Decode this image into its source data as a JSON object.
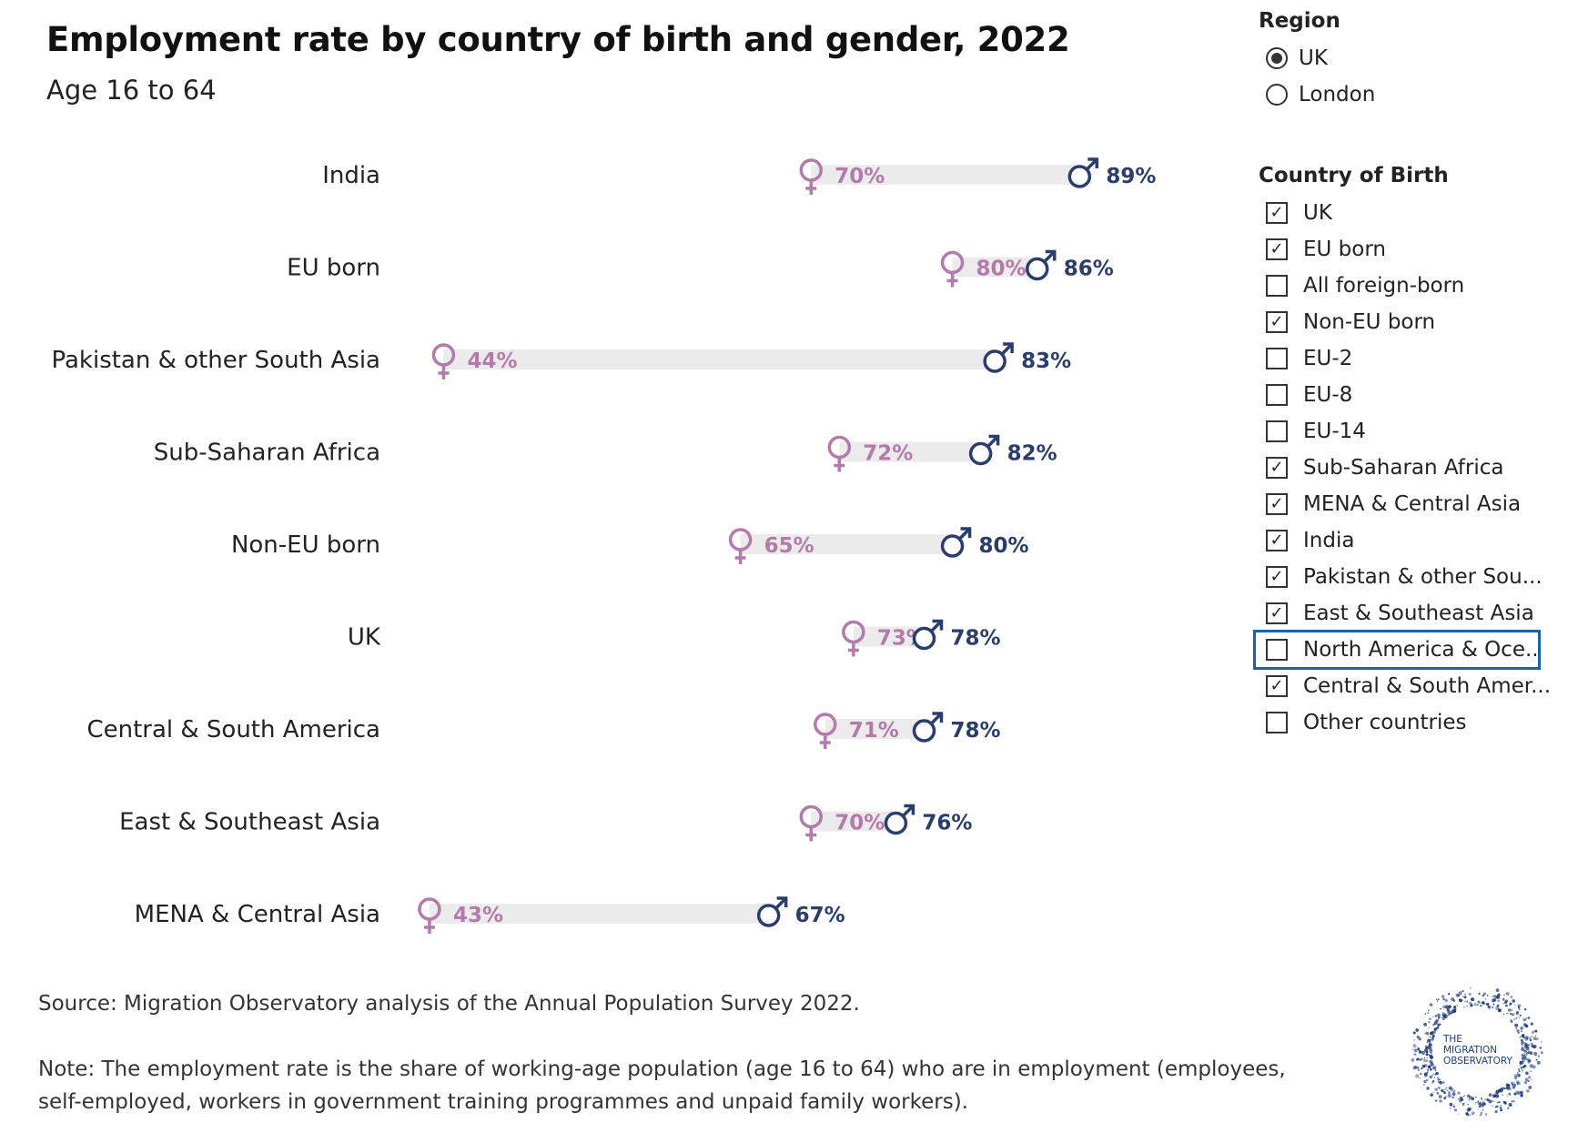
{
  "chart_data": {
    "type": "dumbbell",
    "title": "Employment rate by country of birth and gender, 2022",
    "subtitle": "Age 16 to 64",
    "categories": [
      "India",
      "EU born",
      "Pakistan & other South Asia",
      "Sub-Saharan Africa",
      "Non-EU born",
      "UK",
      "Central & South America",
      "East & Southeast Asia",
      "MENA & Central Asia"
    ],
    "series": [
      {
        "values": [
          70,
          80,
          44,
          72,
          65,
          73,
          71,
          70,
          43
        ]
      },
      {
        "values": [
          89,
          86,
          83,
          82,
          80,
          78,
          78,
          76,
          67
        ]
      }
    ],
    "value_labels_female": [
      "70%",
      "80%",
      "44%",
      "72%",
      "65%",
      "73%",
      "71%",
      "70%",
      "43%"
    ],
    "value_labels_male": [
      "89%",
      "86%",
      "83%",
      "82%",
      "80%",
      "78%",
      "78%",
      "76%",
      "67%"
    ],
    "colors": {
      "female": "#b37aab",
      "male": "#2a3d6b",
      "bar": "#ebebeb"
    }
  },
  "region": {
    "title": "Region",
    "options": [
      {
        "label": "UK",
        "selected": true
      },
      {
        "label": "London",
        "selected": false
      }
    ]
  },
  "country_filter": {
    "title": "Country of Birth",
    "options": [
      {
        "label": "UK",
        "checked": true
      },
      {
        "label": "EU born",
        "checked": true
      },
      {
        "label": "All foreign-born",
        "checked": false
      },
      {
        "label": "Non-EU born",
        "checked": true
      },
      {
        "label": "EU-2",
        "checked": false
      },
      {
        "label": "EU-8",
        "checked": false
      },
      {
        "label": "EU-14",
        "checked": false
      },
      {
        "label": "Sub-Saharan Africa",
        "checked": true
      },
      {
        "label": "MENA & Central Asia",
        "checked": true
      },
      {
        "label": "India",
        "checked": true
      },
      {
        "label": "Pakistan & other Sou...",
        "checked": true
      },
      {
        "label": "East & Southeast Asia",
        "checked": true
      },
      {
        "label": "North America & Oce...",
        "checked": false,
        "focused": true
      },
      {
        "label": "Central & South Amer...",
        "checked": true
      },
      {
        "label": "Other countries",
        "checked": false
      }
    ]
  },
  "footer": {
    "source": "Source: Migration Observatory analysis of the Annual Population Survey 2022.",
    "note": "Note: The employment rate is the share of working-age population (age 16 to 64) who are in employment (employees, self-employed, workers in government training programmes and unpaid family workers)."
  },
  "logo": {
    "text": [
      "THE",
      "MIGRATION",
      "OBSERVATORY"
    ],
    "color": "#1f3d7a"
  },
  "icons": {
    "female": "female-symbol-icon",
    "male": "male-symbol-icon"
  }
}
